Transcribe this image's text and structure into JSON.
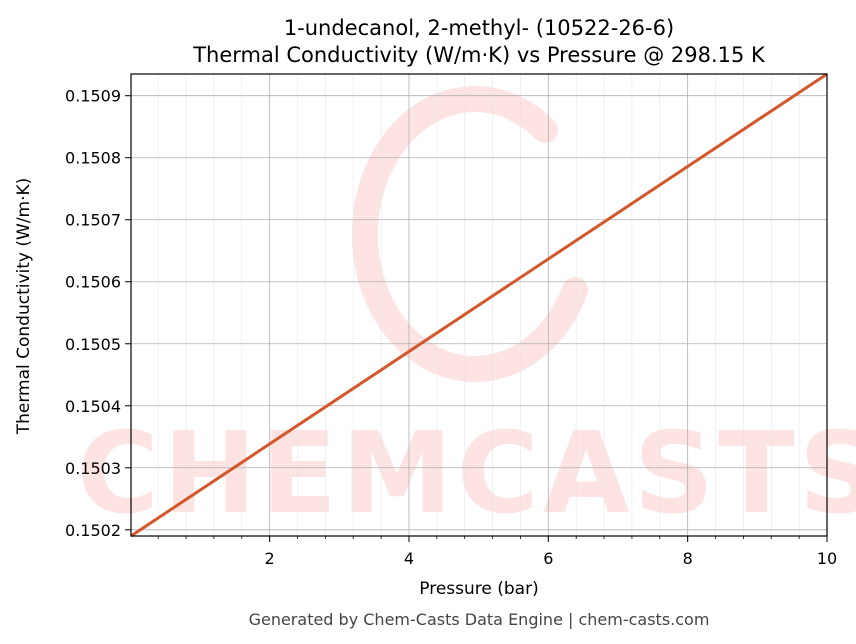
{
  "chart_data": {
    "type": "line",
    "title_line1": "1-undecanol, 2-methyl- (10522-26-6)",
    "title_line2": "Thermal Conductivity (W/m·K) vs Pressure @ 298.15 K",
    "xlabel": "Pressure (bar)",
    "ylabel": "Thermal Conductivity (W/m·K)",
    "xlim": [
      0.01,
      10
    ],
    "ylim": [
      0.15019,
      0.150935
    ],
    "x_ticks": [
      2,
      4,
      6,
      8,
      10
    ],
    "x_tick_labels": [
      "2",
      "4",
      "6",
      "8",
      "10"
    ],
    "y_ticks": [
      0.1502,
      0.1503,
      0.1504,
      0.1505,
      0.1506,
      0.1507,
      0.1508,
      0.1509
    ],
    "y_tick_labels": [
      "0.1502",
      "0.1503",
      "0.1504",
      "0.1505",
      "0.1506",
      "0.1507",
      "0.1508",
      "0.1509"
    ],
    "grid": true,
    "series": [
      {
        "color": "#d4572a",
        "x": [
          0.01,
          10
        ],
        "y": [
          0.15019,
          0.150935
        ]
      }
    ]
  },
  "watermark": "CHEMCASTS",
  "footer": "Generated by Chem-Casts Data Engine | chem-casts.com",
  "colors": {
    "line": "#d4572a",
    "watermark": "#fde3e1",
    "grid": "#b0b0b0"
  }
}
